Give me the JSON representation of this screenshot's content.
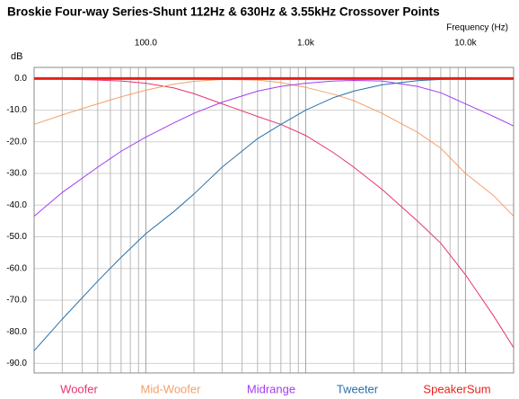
{
  "chart_data": {
    "type": "line",
    "title": "Broskie Four-way Series-Shunt 112Hz & 630Hz & 3.55kHz Crossover Points",
    "x_label": "Frequency  (Hz)",
    "y_label": "dB",
    "log_x": true,
    "grid": true,
    "legend": "bottom",
    "x": [
      20,
      30,
      50,
      70,
      100,
      150,
      200,
      300,
      500,
      700,
      1000,
      1500,
      2000,
      3000,
      5000,
      7000,
      10000,
      15000,
      20000
    ],
    "xlim": [
      20,
      20000
    ],
    "xticks": [
      {
        "value": 100,
        "label": "100.0"
      },
      {
        "value": 1000,
        "label": "1.0k"
      },
      {
        "value": 10000,
        "label": "10.0k"
      }
    ],
    "xminor_ticks": [
      20,
      30,
      40,
      50,
      60,
      70,
      80,
      90,
      200,
      300,
      400,
      500,
      600,
      700,
      800,
      900,
      2000,
      3000,
      4000,
      5000,
      6000,
      7000,
      8000,
      9000,
      20000
    ],
    "ylim": [
      -93,
      3.5
    ],
    "yticks": [
      {
        "value": 0,
        "label": "0.0"
      },
      {
        "value": -10,
        "label": "-10.0"
      },
      {
        "value": -20,
        "label": "-20.0"
      },
      {
        "value": -30,
        "label": "-30.0"
      },
      {
        "value": -40,
        "label": "-40.0"
      },
      {
        "value": -50,
        "label": "-50.0"
      },
      {
        "value": -60,
        "label": "-60.0"
      },
      {
        "value": -70,
        "label": "-70.0"
      },
      {
        "value": -80,
        "label": "-80.0"
      },
      {
        "value": -90,
        "label": "-90.0"
      }
    ],
    "series": [
      {
        "name": "Woofer",
        "color": "#e8336f",
        "width": 1,
        "values": [
          0,
          -0.2,
          -0.5,
          -0.8,
          -1.5,
          -3,
          -4.8,
          -8,
          -12,
          -14.5,
          -18,
          -23.5,
          -28,
          -35,
          -45,
          -52,
          -62,
          -75,
          -85
        ]
      },
      {
        "name": "Mid-Woofer",
        "color": "#f5a06a",
        "width": 1,
        "values": [
          -14.5,
          -11.5,
          -8,
          -5.8,
          -3.7,
          -1.8,
          -0.9,
          -0.3,
          -0.5,
          -1.3,
          -2.8,
          -5,
          -7,
          -11,
          -17,
          -22,
          -30,
          -37,
          -43.5
        ]
      },
      {
        "name": "Midrange",
        "color": "#a33df0",
        "width": 1,
        "values": [
          -43.5,
          -36,
          -28,
          -23,
          -18.5,
          -14,
          -11,
          -7.5,
          -4,
          -2.5,
          -1.5,
          -0.8,
          -0.6,
          -0.8,
          -2.5,
          -4.5,
          -8,
          -12,
          -15
        ]
      },
      {
        "name": "Tweeter",
        "color": "#2a6fa8",
        "width": 1,
        "values": [
          -86,
          -76,
          -64,
          -56.5,
          -49,
          -42,
          -36.5,
          -28,
          -19,
          -14.5,
          -10,
          -6,
          -4,
          -2,
          -0.7,
          -0.3,
          -0.1,
          0,
          0
        ]
      },
      {
        "name": "SpeakerSum",
        "color": "#e8201a",
        "width": 3,
        "values": [
          0,
          0,
          0,
          0,
          0,
          0,
          0,
          0,
          0,
          0,
          0,
          0,
          0,
          0,
          0,
          0,
          0,
          0,
          0
        ]
      }
    ]
  }
}
